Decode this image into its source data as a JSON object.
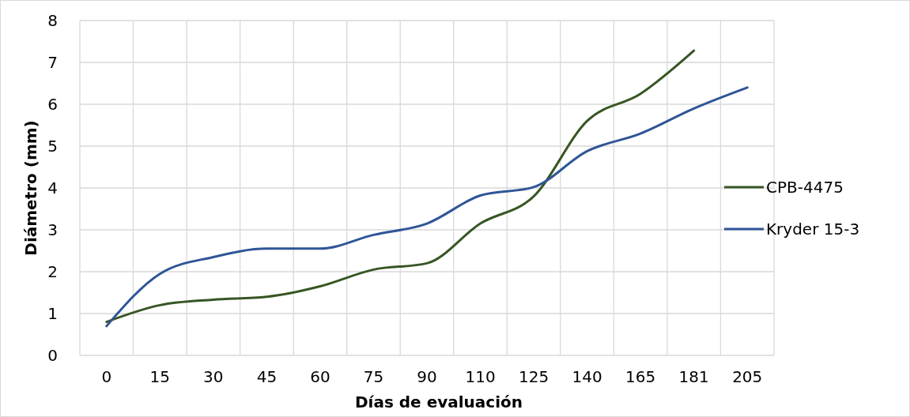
{
  "chart_data": {
    "type": "line",
    "xlabel": "Días de evaluación",
    "ylabel": "Diámetro (mm)",
    "categories": [
      "0",
      "15",
      "30",
      "45",
      "60",
      "75",
      "90",
      "110",
      "125",
      "140",
      "165",
      "181",
      "205"
    ],
    "series": [
      {
        "name": "CPB-4475",
        "color": "#375623",
        "values": [
          0.8,
          1.2,
          1.33,
          1.4,
          1.65,
          2.05,
          2.2,
          3.15,
          3.8,
          5.6,
          6.25,
          7.28,
          null
        ]
      },
      {
        "name": "Kryder 15-3",
        "color": "#2f5597",
        "values": [
          0.7,
          1.95,
          2.35,
          2.55,
          2.55,
          2.88,
          3.15,
          3.82,
          4.02,
          4.88,
          5.3,
          5.9,
          6.4
        ]
      }
    ],
    "ylim": [
      0,
      8
    ],
    "yticks": [
      0,
      1,
      2,
      3,
      4,
      5,
      6,
      7,
      8
    ],
    "grid": true,
    "legend": "right",
    "line_style": "solid",
    "marker": "none"
  }
}
